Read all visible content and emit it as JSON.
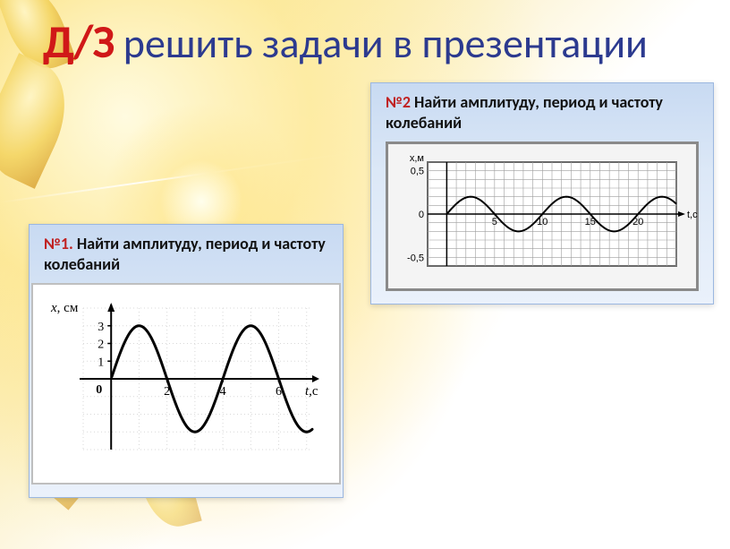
{
  "title": {
    "dz": "Д/З",
    "rest": " решить задачи в презентации"
  },
  "card1": {
    "num": "№1.",
    "text": " Найти амплитуду, период и частоту колебаний",
    "chart": {
      "type": "line",
      "y_axis_label": "x, см",
      "x_axis_label": "t,с",
      "xlim": [
        -1,
        7.2
      ],
      "ylim": [
        -4,
        4
      ],
      "x_ticks": [
        2,
        4,
        6
      ],
      "y_ticks": [
        1,
        2,
        3
      ],
      "origin_label": "0",
      "amplitude": 3,
      "period": 4,
      "phase_offset_x": 0,
      "line_color": "#000000",
      "line_width": 3,
      "grid_color_major": "#b0b0b0",
      "grid_color_minor": "#d8d8d8",
      "background_color": "#ffffff",
      "axis_color": "#000000",
      "font_family": "Times New Roman",
      "tick_fontsize": 14,
      "label_fontsize": 15
    }
  },
  "card2": {
    "num": "№2",
    "text": " Найти амплитуду, период и частоту колебаний",
    "chart": {
      "type": "line",
      "y_axis_label": "x,м",
      "x_axis_label": "t,с",
      "xlim": [
        -2,
        24
      ],
      "ylim": [
        -0.6,
        0.6
      ],
      "x_ticks": [
        5,
        10,
        15,
        20
      ],
      "y_ticks": [
        -0.5,
        0,
        0.5
      ],
      "y_tick_labels": [
        "-0,5",
        "0",
        "0,5"
      ],
      "amplitude": 0.2,
      "period": 10,
      "phase_offset_x": 0,
      "line_color": "#000000",
      "line_width": 2,
      "grid_color": "#9e9e9e",
      "background_color": "#ffffff",
      "border_color": "#6a6a6a",
      "axis_color": "#000000",
      "font_family": "Arial",
      "tick_fontsize": 11,
      "label_fontsize": 11
    }
  }
}
